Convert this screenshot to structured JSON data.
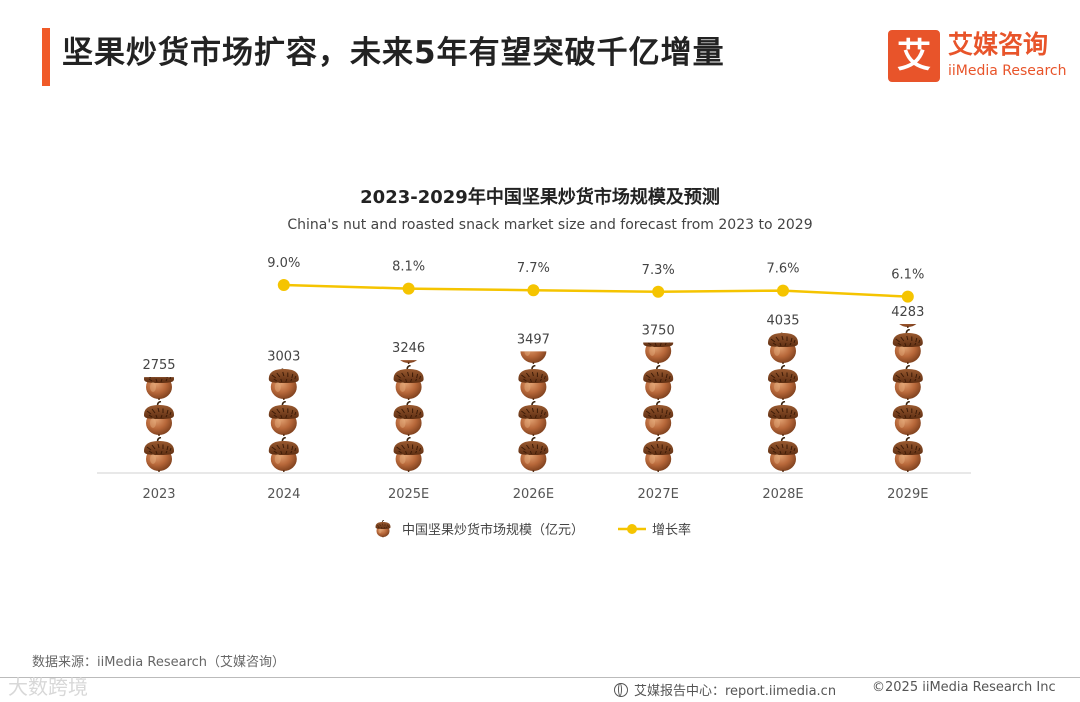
{
  "header": {
    "title": "坚果炒货市场扩容，未来5年有望突破千亿增量",
    "logo_mark": "艾",
    "logo_cn": "艾媒咨询",
    "logo_en": "iiMedia Research"
  },
  "chart_data": {
    "type": "bar",
    "title": "2023-2029年中国坚果炒货市场规模及预测",
    "subtitle": "China's nut and roasted snack market size and forecast from 2023 to 2029",
    "categories": [
      "2023",
      "2024",
      "2025E",
      "2026E",
      "2027E",
      "2028E",
      "2029E"
    ],
    "series": [
      {
        "name": "中国坚果炒货市场规模（亿元）",
        "kind": "pictograph-bar",
        "icon": "acorn-icon",
        "values": [
          2755,
          3003,
          3246,
          3497,
          3750,
          4035,
          4283
        ],
        "color": "#a0522d"
      },
      {
        "name": "增长率",
        "kind": "line",
        "values": [
          null,
          9.0,
          8.1,
          7.7,
          7.3,
          7.6,
          6.1
        ],
        "labels": [
          "",
          "9.0%",
          "8.1%",
          "7.7%",
          "7.3%",
          "7.6%",
          "6.1%"
        ],
        "color": "#f5c400"
      }
    ],
    "ylim": [
      0,
      4283
    ],
    "legend_position": "bottom"
  },
  "footer": {
    "source": "数据来源：iiMedia Research（艾媒咨询）",
    "watermark": "大数跨境",
    "report_center": "艾媒报告中心：report.iimedia.cn",
    "copyright": "©2025  iiMedia Research Inc"
  }
}
